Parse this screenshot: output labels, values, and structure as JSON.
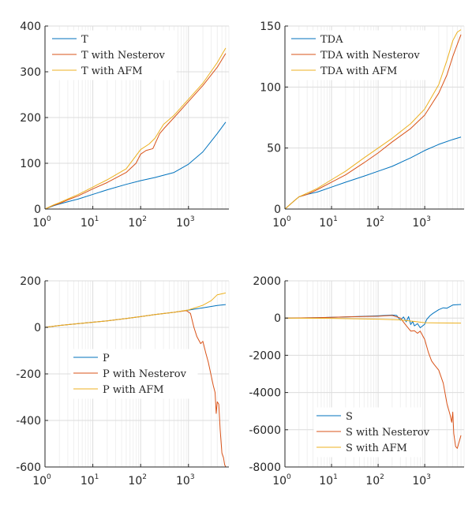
{
  "colors": {
    "blue": "#0072BD",
    "orange": "#D95319",
    "yellow": "#EDB120",
    "axis": "#262626",
    "grid": "#dcdcdc"
  },
  "chart_data": [
    {
      "type": "line",
      "xscale": "log",
      "xlim": [
        1,
        7000
      ],
      "ylim": [
        0,
        400
      ],
      "yticks": [
        "0",
        "100",
        "200",
        "300",
        "400"
      ],
      "xticks": [
        {
          "base": "10",
          "exp": "0"
        },
        {
          "base": "10",
          "exp": "1"
        },
        {
          "base": "10",
          "exp": "2"
        },
        {
          "base": "10",
          "exp": "3"
        }
      ],
      "grid": true,
      "legend_position": "top-left",
      "series": [
        {
          "name": "T",
          "color": "blue",
          "points": [
            [
              1,
              0
            ],
            [
              1.5,
              7
            ],
            [
              2,
              11
            ],
            [
              3,
              16
            ],
            [
              5,
              22
            ],
            [
              10,
              32
            ],
            [
              20,
              42
            ],
            [
              50,
              54
            ],
            [
              100,
              62
            ],
            [
              200,
              69
            ],
            [
              500,
              80
            ],
            [
              1000,
              98
            ],
            [
              2000,
              125
            ],
            [
              4000,
              165
            ],
            [
              6000,
              190
            ]
          ]
        },
        {
          "name": "T with Nesterov",
          "color": "orange",
          "points": [
            [
              1,
              0
            ],
            [
              1.5,
              8
            ],
            [
              2,
              12
            ],
            [
              3,
              20
            ],
            [
              5,
              29
            ],
            [
              10,
              44
            ],
            [
              20,
              58
            ],
            [
              50,
              80
            ],
            [
              80,
              100
            ],
            [
              100,
              120
            ],
            [
              130,
              128
            ],
            [
              180,
              132
            ],
            [
              250,
              165
            ],
            [
              320,
              178
            ],
            [
              500,
              200
            ],
            [
              1000,
              235
            ],
            [
              2000,
              270
            ],
            [
              4000,
              310
            ],
            [
              6000,
              340
            ]
          ]
        },
        {
          "name": "T with AFM",
          "color": "yellow",
          "points": [
            [
              1,
              0
            ],
            [
              1.5,
              9
            ],
            [
              2,
              14
            ],
            [
              3,
              22
            ],
            [
              5,
              32
            ],
            [
              10,
              48
            ],
            [
              20,
              64
            ],
            [
              50,
              88
            ],
            [
              100,
              130
            ],
            [
              150,
              142
            ],
            [
              200,
              155
            ],
            [
              300,
              185
            ],
            [
              500,
              205
            ],
            [
              1000,
              240
            ],
            [
              2000,
              275
            ],
            [
              4000,
              320
            ],
            [
              6000,
              352
            ]
          ]
        }
      ]
    },
    {
      "type": "line",
      "xscale": "log",
      "xlim": [
        1,
        7000
      ],
      "ylim": [
        0,
        150
      ],
      "yticks": [
        "0",
        "50",
        "100",
        "150"
      ],
      "xticks": [
        {
          "base": "10",
          "exp": "0"
        },
        {
          "base": "10",
          "exp": "1"
        },
        {
          "base": "10",
          "exp": "2"
        },
        {
          "base": "10",
          "exp": "3"
        }
      ],
      "grid": true,
      "legend_position": "top-left",
      "series": [
        {
          "name": "TDA",
          "color": "blue",
          "points": [
            [
              1,
              0
            ],
            [
              1.5,
              6
            ],
            [
              2,
              10
            ],
            [
              3,
              12
            ],
            [
              5,
              14
            ],
            [
              10,
              18
            ],
            [
              20,
              22
            ],
            [
              50,
              27
            ],
            [
              100,
              31
            ],
            [
              200,
              35
            ],
            [
              500,
              42
            ],
            [
              1000,
              48
            ],
            [
              2000,
              53
            ],
            [
              4000,
              57
            ],
            [
              6000,
              59
            ]
          ]
        },
        {
          "name": "TDA with Nesterov",
          "color": "orange",
          "points": [
            [
              1,
              0
            ],
            [
              1.5,
              6
            ],
            [
              2,
              10
            ],
            [
              3,
              12
            ],
            [
              5,
              16
            ],
            [
              10,
              22
            ],
            [
              20,
              28
            ],
            [
              50,
              38
            ],
            [
              100,
              46
            ],
            [
              200,
              55
            ],
            [
              500,
              66
            ],
            [
              1000,
              77
            ],
            [
              2000,
              95
            ],
            [
              3000,
              110
            ],
            [
              4000,
              125
            ],
            [
              5000,
              135
            ],
            [
              6000,
              143
            ]
          ]
        },
        {
          "name": "TDA with AFM",
          "color": "yellow",
          "points": [
            [
              1,
              0
            ],
            [
              1.5,
              6
            ],
            [
              2,
              10
            ],
            [
              3,
              13
            ],
            [
              5,
              17
            ],
            [
              10,
              24
            ],
            [
              20,
              31
            ],
            [
              50,
              42
            ],
            [
              100,
              50
            ],
            [
              200,
              58
            ],
            [
              500,
              70
            ],
            [
              1000,
              82
            ],
            [
              2000,
              102
            ],
            [
              3000,
              122
            ],
            [
              4000,
              138
            ],
            [
              5000,
              145
            ],
            [
              6000,
              147
            ]
          ]
        }
      ]
    },
    {
      "type": "line",
      "xscale": "log",
      "xlim": [
        1,
        7000
      ],
      "ylim": [
        -600,
        200
      ],
      "yticks": [
        "-600",
        "-400",
        "-200",
        "0",
        "200"
      ],
      "xticks": [
        {
          "base": "10",
          "exp": "0"
        },
        {
          "base": "10",
          "exp": "1"
        },
        {
          "base": "10",
          "exp": "2"
        },
        {
          "base": "10",
          "exp": "3"
        }
      ],
      "grid": true,
      "legend_position": "lower-left",
      "series": [
        {
          "name": "P",
          "color": "blue",
          "points": [
            [
              1,
              0
            ],
            [
              2,
              8
            ],
            [
              5,
              16
            ],
            [
              10,
              22
            ],
            [
              20,
              28
            ],
            [
              50,
              38
            ],
            [
              100,
              46
            ],
            [
              200,
              55
            ],
            [
              500,
              65
            ],
            [
              1000,
              74
            ],
            [
              2000,
              84
            ],
            [
              4000,
              94
            ],
            [
              6000,
              98
            ]
          ]
        },
        {
          "name": "P with Nesterov",
          "color": "orange",
          "points": [
            [
              1,
              0
            ],
            [
              2,
              8
            ],
            [
              5,
              16
            ],
            [
              10,
              22
            ],
            [
              20,
              28
            ],
            [
              50,
              38
            ],
            [
              100,
              46
            ],
            [
              200,
              55
            ],
            [
              500,
              65
            ],
            [
              900,
              72
            ],
            [
              1100,
              60
            ],
            [
              1300,
              0
            ],
            [
              1500,
              -40
            ],
            [
              1800,
              -70
            ],
            [
              2000,
              -60
            ],
            [
              2300,
              -110
            ],
            [
              2600,
              -150
            ],
            [
              3000,
              -210
            ],
            [
              3300,
              -250
            ],
            [
              3600,
              -280
            ],
            [
              3800,
              -370
            ],
            [
              4000,
              -320
            ],
            [
              4300,
              -330
            ],
            [
              4600,
              -440
            ],
            [
              5000,
              -540
            ],
            [
              5400,
              -560
            ],
            [
              5700,
              -590
            ],
            [
              6000,
              -600
            ]
          ]
        },
        {
          "name": "P with AFM",
          "color": "yellow",
          "points": [
            [
              1,
              0
            ],
            [
              2,
              8
            ],
            [
              5,
              16
            ],
            [
              10,
              22
            ],
            [
              20,
              28
            ],
            [
              50,
              38
            ],
            [
              100,
              46
            ],
            [
              200,
              55
            ],
            [
              500,
              65
            ],
            [
              1000,
              75
            ],
            [
              2000,
              95
            ],
            [
              3000,
              115
            ],
            [
              4000,
              140
            ],
            [
              6000,
              148
            ]
          ]
        }
      ]
    },
    {
      "type": "line",
      "xscale": "log",
      "xlim": [
        1,
        7000
      ],
      "ylim": [
        -8000,
        2000
      ],
      "yticks": [
        "-8000",
        "-6000",
        "-4000",
        "-2000",
        "0",
        "2000"
      ],
      "xticks": [
        {
          "base": "10",
          "exp": "0"
        },
        {
          "base": "10",
          "exp": "1"
        },
        {
          "base": "10",
          "exp": "2"
        },
        {
          "base": "10",
          "exp": "3"
        }
      ],
      "grid": true,
      "legend_position": "lower-left",
      "series": [
        {
          "name": "S",
          "color": "blue",
          "points": [
            [
              1,
              0
            ],
            [
              5,
              20
            ],
            [
              20,
              60
            ],
            [
              100,
              120
            ],
            [
              200,
              160
            ],
            [
              250,
              140
            ],
            [
              300,
              -120
            ],
            [
              350,
              60
            ],
            [
              400,
              -200
            ],
            [
              450,
              80
            ],
            [
              500,
              -350
            ],
            [
              550,
              -180
            ],
            [
              600,
              -420
            ],
            [
              700,
              -300
            ],
            [
              800,
              -520
            ],
            [
              900,
              -420
            ],
            [
              1000,
              -330
            ],
            [
              1100,
              -80
            ],
            [
              1300,
              130
            ],
            [
              1500,
              250
            ],
            [
              2000,
              450
            ],
            [
              2500,
              550
            ],
            [
              3000,
              530
            ],
            [
              4000,
              700
            ],
            [
              5000,
              720
            ],
            [
              6000,
              730
            ]
          ]
        },
        {
          "name": "S with Nesterov",
          "color": "orange",
          "points": [
            [
              1,
              0
            ],
            [
              5,
              20
            ],
            [
              20,
              60
            ],
            [
              100,
              100
            ],
            [
              200,
              140
            ],
            [
              300,
              0
            ],
            [
              400,
              -400
            ],
            [
              500,
              -700
            ],
            [
              600,
              -680
            ],
            [
              700,
              -820
            ],
            [
              800,
              -700
            ],
            [
              1000,
              -1150
            ],
            [
              1200,
              -1850
            ],
            [
              1400,
              -2300
            ],
            [
              1600,
              -2500
            ],
            [
              2000,
              -2800
            ],
            [
              2500,
              -3500
            ],
            [
              3000,
              -4600
            ],
            [
              3500,
              -5200
            ],
            [
              3800,
              -5600
            ],
            [
              4000,
              -5050
            ],
            [
              4200,
              -6200
            ],
            [
              4600,
              -6900
            ],
            [
              5000,
              -7000
            ],
            [
              5400,
              -6700
            ],
            [
              6000,
              -6300
            ]
          ]
        },
        {
          "name": "S with AFM",
          "color": "yellow",
          "points": [
            [
              1,
              0
            ],
            [
              10,
              -20
            ],
            [
              100,
              -60
            ],
            [
              300,
              -100
            ],
            [
              600,
              -180
            ],
            [
              1000,
              -250
            ],
            [
              2000,
              -260
            ],
            [
              6000,
              -270
            ]
          ]
        }
      ]
    }
  ]
}
